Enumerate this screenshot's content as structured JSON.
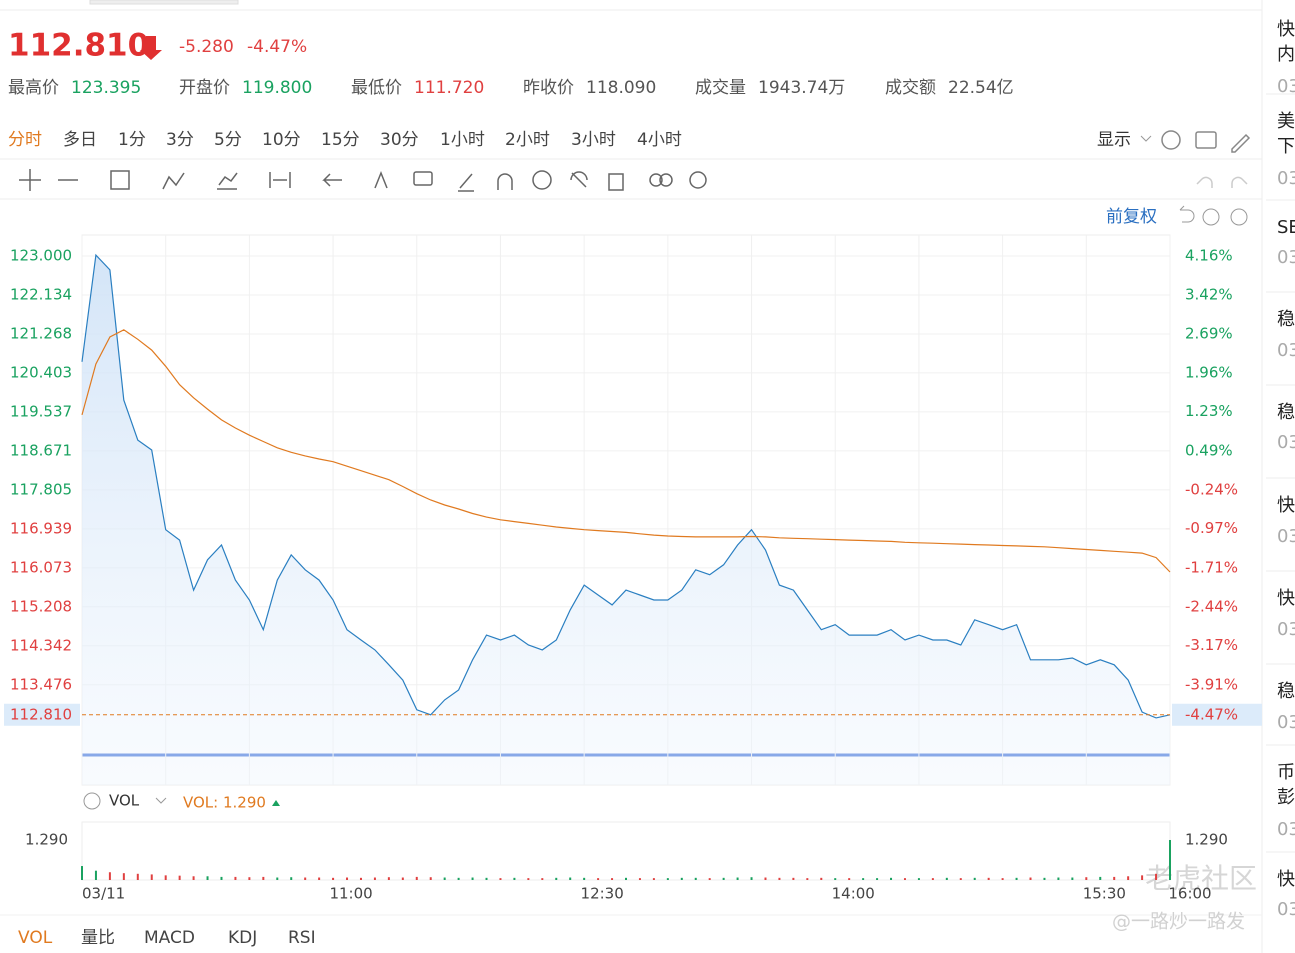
{
  "header": {
    "price": "112.810",
    "change": "-5.280",
    "change_pct": "-4.47%",
    "stats": [
      {
        "label": "最高价",
        "value": "123.395",
        "color": "#1aa260"
      },
      {
        "label": "开盘价",
        "value": "119.800",
        "color": "#1aa260"
      },
      {
        "label": "最低价",
        "value": "111.720",
        "color": "#e04040"
      },
      {
        "label": "昨收价",
        "value": "118.090",
        "color": "#555"
      },
      {
        "label": "成交量",
        "value": "1943.74万",
        "color": "#555"
      },
      {
        "label": "成交额",
        "value": "22.54亿",
        "color": "#555"
      }
    ]
  },
  "tabs": [
    "分时",
    "多日",
    "1分",
    "3分",
    "5分",
    "10分",
    "15分",
    "30分",
    "1小时",
    "2小时",
    "3小时",
    "4小时"
  ],
  "display": "显示",
  "adjust": "前复权",
  "bottom_tabs": [
    "VOL",
    "量比",
    "MACD",
    "KDJ",
    "RSI"
  ],
  "sidebar": [
    [
      "快",
      "内",
      "03"
    ],
    [
      "美",
      "下",
      "03"
    ],
    [
      "SE",
      "03"
    ],
    [
      "稳",
      "03"
    ],
    [
      "稳",
      "03"
    ],
    [
      "快",
      "03"
    ],
    [
      "快",
      "03"
    ],
    [
      "稳",
      "03"
    ],
    [
      "币",
      "彭",
      "03"
    ],
    [
      "快",
      "03"
    ]
  ],
  "watermark": [
    "老虎社区",
    "@一路炒一路发"
  ],
  "chart_data": {
    "type": "line",
    "xlim": [
      0,
      390
    ],
    "x": [
      0,
      5,
      10,
      15,
      20,
      25,
      30,
      35,
      40,
      45,
      50,
      55,
      60,
      65,
      70,
      75,
      80,
      85,
      90,
      95,
      100,
      105,
      110,
      115,
      120,
      125,
      130,
      135,
      140,
      145,
      150,
      155,
      160,
      165,
      170,
      175,
      180,
      185,
      190,
      195,
      200,
      205,
      210,
      215,
      220,
      225,
      230,
      235,
      240,
      245,
      250,
      255,
      260,
      265,
      270,
      275,
      280,
      285,
      290,
      295,
      300,
      305,
      310,
      315,
      320,
      325,
      330,
      335,
      340,
      345,
      350,
      355,
      360,
      365,
      370,
      375,
      380,
      385,
      390
    ],
    "xticks": [
      {
        "value": 0,
        "label": "03/11"
      },
      {
        "value": 90,
        "label": "11:00"
      },
      {
        "value": 180,
        "label": "12:30"
      },
      {
        "value": 270,
        "label": "14:00"
      },
      {
        "value": 360,
        "label": "15:30"
      },
      {
        "value": 390,
        "label": "16:00"
      }
    ],
    "minor_xticks": [
      30,
      60,
      120,
      150,
      210,
      240,
      300,
      330
    ],
    "ylim": [
      111.25,
      123.466
    ],
    "yticks": [
      {
        "value": 123,
        "label": "123.000"
      },
      122.134,
      121.268,
      120.403,
      119.537,
      118.671,
      117.805,
      116.939,
      116.073,
      115.208,
      114.342,
      113.476
    ],
    "y2lim": [
      -5.792,
      4.552
    ],
    "y2ticks": [
      {
        "value": 4.16,
        "label": "4.16%"
      },
      {
        "value": 3.42,
        "label": "3.42%"
      },
      {
        "value": 2.69,
        "label": "2.69%"
      },
      {
        "value": 1.96,
        "label": "1.96%"
      },
      {
        "value": 1.23,
        "label": "1.23%"
      },
      {
        "value": 0.49,
        "label": "0.49%"
      },
      {
        "value": -0.24,
        "label": "-0.24%"
      },
      {
        "value": -0.97,
        "label": "-0.97%"
      },
      {
        "value": -1.71,
        "label": "-1.71%"
      },
      {
        "value": -2.44,
        "label": "-2.44%"
      },
      {
        "value": -3.17,
        "label": "-3.17%"
      },
      {
        "value": -3.91,
        "label": "-3.91%"
      }
    ],
    "grid": true,
    "series": [
      {
        "color": "#2a7fc1",
        "values": [
          120.65,
          123.02,
          122.69,
          119.8,
          118.91,
          118.69,
          116.92,
          116.69,
          115.58,
          116.25,
          116.58,
          115.8,
          115.36,
          114.7,
          115.8,
          116.36,
          116.03,
          115.8,
          115.36,
          114.7,
          114.47,
          114.25,
          113.92,
          113.58,
          112.92,
          112.81,
          113.14,
          113.36,
          114.03,
          114.58,
          114.47,
          114.58,
          114.36,
          114.25,
          114.47,
          115.14,
          115.69,
          115.47,
          115.25,
          115.58,
          115.47,
          115.36,
          115.36,
          115.58,
          116.03,
          115.92,
          116.14,
          116.58,
          116.92,
          116.47,
          115.69,
          115.58,
          115.14,
          114.7,
          114.81,
          114.58,
          114.58,
          114.58,
          114.7,
          114.47,
          114.58,
          114.47,
          114.47,
          114.36,
          114.92,
          114.81,
          114.7,
          114.81,
          114.03,
          114.03,
          114.03,
          114.07,
          113.92,
          114.03,
          113.92,
          113.58,
          112.87,
          112.74,
          112.81
        ]
      },
      {
        "color": "#e07a20",
        "values": [
          119.47,
          120.6,
          121.2,
          121.36,
          121.15,
          120.91,
          120.55,
          120.14,
          119.85,
          119.6,
          119.36,
          119.18,
          119.02,
          118.88,
          118.74,
          118.64,
          118.56,
          118.49,
          118.43,
          118.33,
          118.23,
          118.13,
          118.03,
          117.88,
          117.72,
          117.58,
          117.47,
          117.38,
          117.28,
          117.2,
          117.14,
          117.1,
          117.06,
          117.02,
          116.98,
          116.95,
          116.92,
          116.9,
          116.88,
          116.86,
          116.83,
          116.8,
          116.78,
          116.77,
          116.76,
          116.76,
          116.76,
          116.76,
          116.77,
          116.76,
          116.74,
          116.73,
          116.72,
          116.71,
          116.7,
          116.69,
          116.68,
          116.67,
          116.66,
          116.64,
          116.63,
          116.62,
          116.61,
          116.6,
          116.59,
          116.58,
          116.57,
          116.56,
          116.55,
          116.54,
          116.52,
          116.5,
          116.48,
          116.46,
          116.44,
          116.42,
          116.4,
          116.3,
          115.98
        ]
      }
    ],
    "volume": {
      "label": "VOL",
      "value_label": "VOL: 1.290",
      "ylim": [
        0,
        1.87
      ],
      "yticks": [
        {
          "value": 1.29,
          "label": "1.290"
        }
      ],
      "up_color": "#1aa260",
      "down_color": "#e04040",
      "values": [
        0.45,
        0.3,
        0.25,
        0.22,
        0.2,
        0.18,
        0.15,
        0.14,
        0.12,
        0.12,
        0.1,
        0.1,
        0.09,
        0.1,
        0.08,
        0.09,
        0.08,
        0.08,
        0.07,
        0.08,
        0.07,
        0.08,
        0.09,
        0.08,
        0.1,
        0.09,
        0.08,
        0.07,
        0.08,
        0.07,
        0.06,
        0.07,
        0.06,
        0.06,
        0.07,
        0.08,
        0.07,
        0.06,
        0.06,
        0.07,
        0.06,
        0.06,
        0.06,
        0.07,
        0.07,
        0.06,
        0.07,
        0.08,
        0.09,
        0.08,
        0.07,
        0.07,
        0.06,
        0.07,
        0.06,
        0.06,
        0.06,
        0.06,
        0.07,
        0.06,
        0.06,
        0.06,
        0.07,
        0.06,
        0.07,
        0.07,
        0.06,
        0.07,
        0.08,
        0.07,
        0.08,
        0.08,
        0.09,
        0.1,
        0.1,
        0.12,
        0.15,
        0.2,
        1.29
      ]
    }
  }
}
